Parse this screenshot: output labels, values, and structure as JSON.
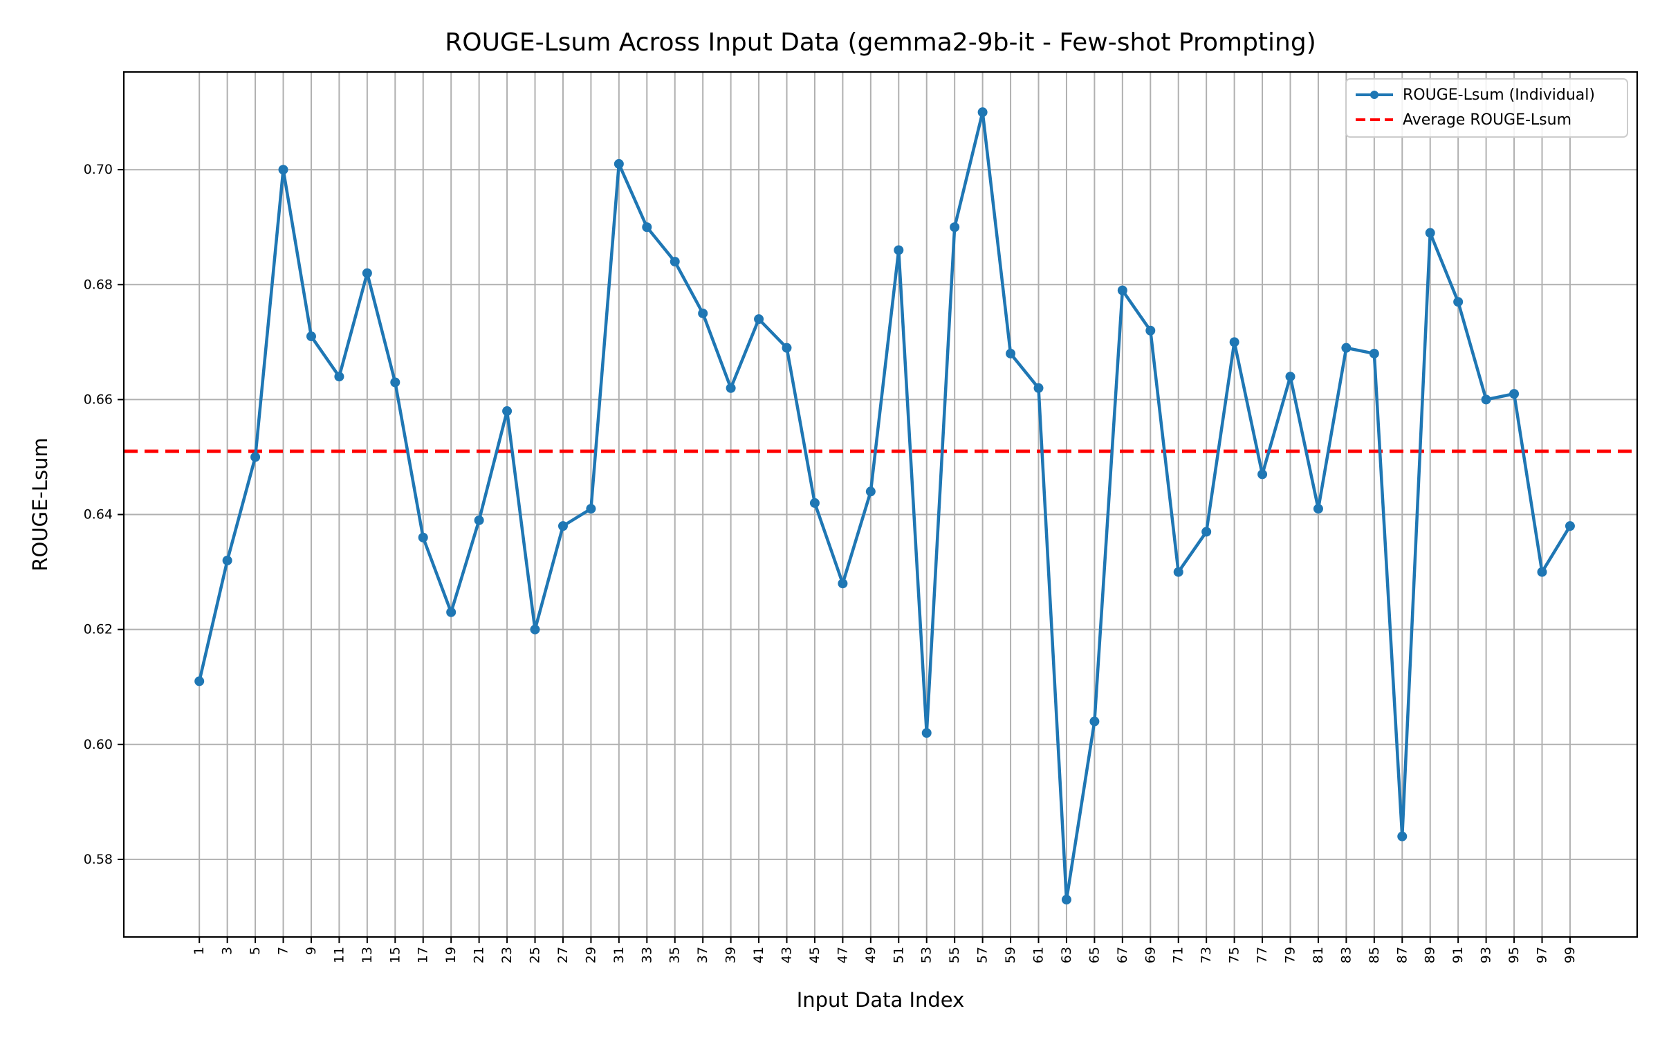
{
  "chart_data": {
    "type": "line",
    "title": "ROUGE-Lsum Across Input Data (gemma2-9b-it - Few-shot Prompting)",
    "xlabel": "Input Data Index",
    "ylabel": "ROUGE-Lsum",
    "xlim": [
      -4.4,
      103.8
    ],
    "ylim": [
      0.5665,
      0.717
    ],
    "grid": true,
    "legend_position": "top-right",
    "x_ticks": [
      1,
      3,
      5,
      7,
      9,
      11,
      13,
      15,
      17,
      19,
      21,
      23,
      25,
      27,
      29,
      31,
      33,
      35,
      37,
      39,
      41,
      43,
      45,
      47,
      49,
      51,
      53,
      55,
      57,
      59,
      61,
      63,
      65,
      67,
      69,
      71,
      73,
      75,
      77,
      79,
      81,
      83,
      85,
      87,
      89,
      91,
      93,
      95,
      97,
      99
    ],
    "y_ticks": [
      0.58,
      0.6,
      0.62,
      0.64,
      0.66,
      0.68,
      0.7
    ],
    "y_tick_labels": [
      "0.58",
      "0.60",
      "0.62",
      "0.64",
      "0.66",
      "0.68",
      "0.70"
    ],
    "series": [
      {
        "name": "ROUGE-Lsum (Individual)",
        "color": "#1f77b4",
        "x": [
          1,
          3,
          5,
          7,
          9,
          11,
          13,
          15,
          17,
          19,
          21,
          23,
          25,
          27,
          29,
          31,
          33,
          35,
          37,
          39,
          41,
          43,
          45,
          47,
          49,
          51,
          53,
          55,
          57,
          59,
          61,
          63,
          65,
          67,
          69,
          71,
          73,
          75,
          77,
          79,
          81,
          83,
          85,
          87,
          89,
          91,
          93,
          95,
          97,
          99
        ],
        "values": [
          0.611,
          0.632,
          0.65,
          0.7,
          0.671,
          0.664,
          0.682,
          0.663,
          0.636,
          0.623,
          0.639,
          0.658,
          0.62,
          0.638,
          0.641,
          0.701,
          0.69,
          0.684,
          0.675,
          0.662,
          0.674,
          0.669,
          0.642,
          0.628,
          0.644,
          0.686,
          0.602,
          0.69,
          0.71,
          0.668,
          0.662,
          0.573,
          0.604,
          0.679,
          0.672,
          0.63,
          0.637,
          0.67,
          0.647,
          0.664,
          0.641,
          0.669,
          0.668,
          0.584,
          0.689,
          0.677,
          0.66,
          0.661,
          0.63,
          0.638
        ]
      },
      {
        "name": "Average ROUGE-Lsum",
        "color": "#ff0000",
        "style": "dashed",
        "value": 0.651
      }
    ]
  }
}
